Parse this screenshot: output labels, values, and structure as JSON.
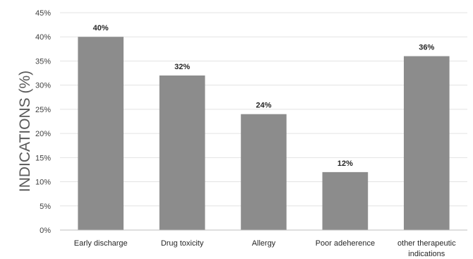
{
  "chart_data": {
    "type": "bar",
    "title": "",
    "xlabel": "",
    "ylabel": "INDICATIONS (%)",
    "categories": [
      [
        "Early  discharge"
      ],
      [
        "Drug toxicity"
      ],
      [
        "Allergy"
      ],
      [
        "Poor adeherence"
      ],
      [
        "other therapeutic",
        "indications"
      ]
    ],
    "values": [
      40,
      32,
      24,
      12,
      36
    ],
    "data_labels": [
      "40%",
      "32%",
      "24%",
      "12%",
      "36%"
    ],
    "ylim": [
      0,
      45
    ],
    "yticks": [
      0,
      5,
      10,
      15,
      20,
      25,
      30,
      35,
      40,
      45
    ],
    "ytick_labels": [
      "0%",
      "5%",
      "10%",
      "15%",
      "20%",
      "25%",
      "30%",
      "35%",
      "40%",
      "45%"
    ],
    "grid": true,
    "legend": "none",
    "colors": {
      "bar": "#8c8c8c",
      "grid": "#e3e3e3",
      "axis": "#bfbfbf"
    }
  }
}
